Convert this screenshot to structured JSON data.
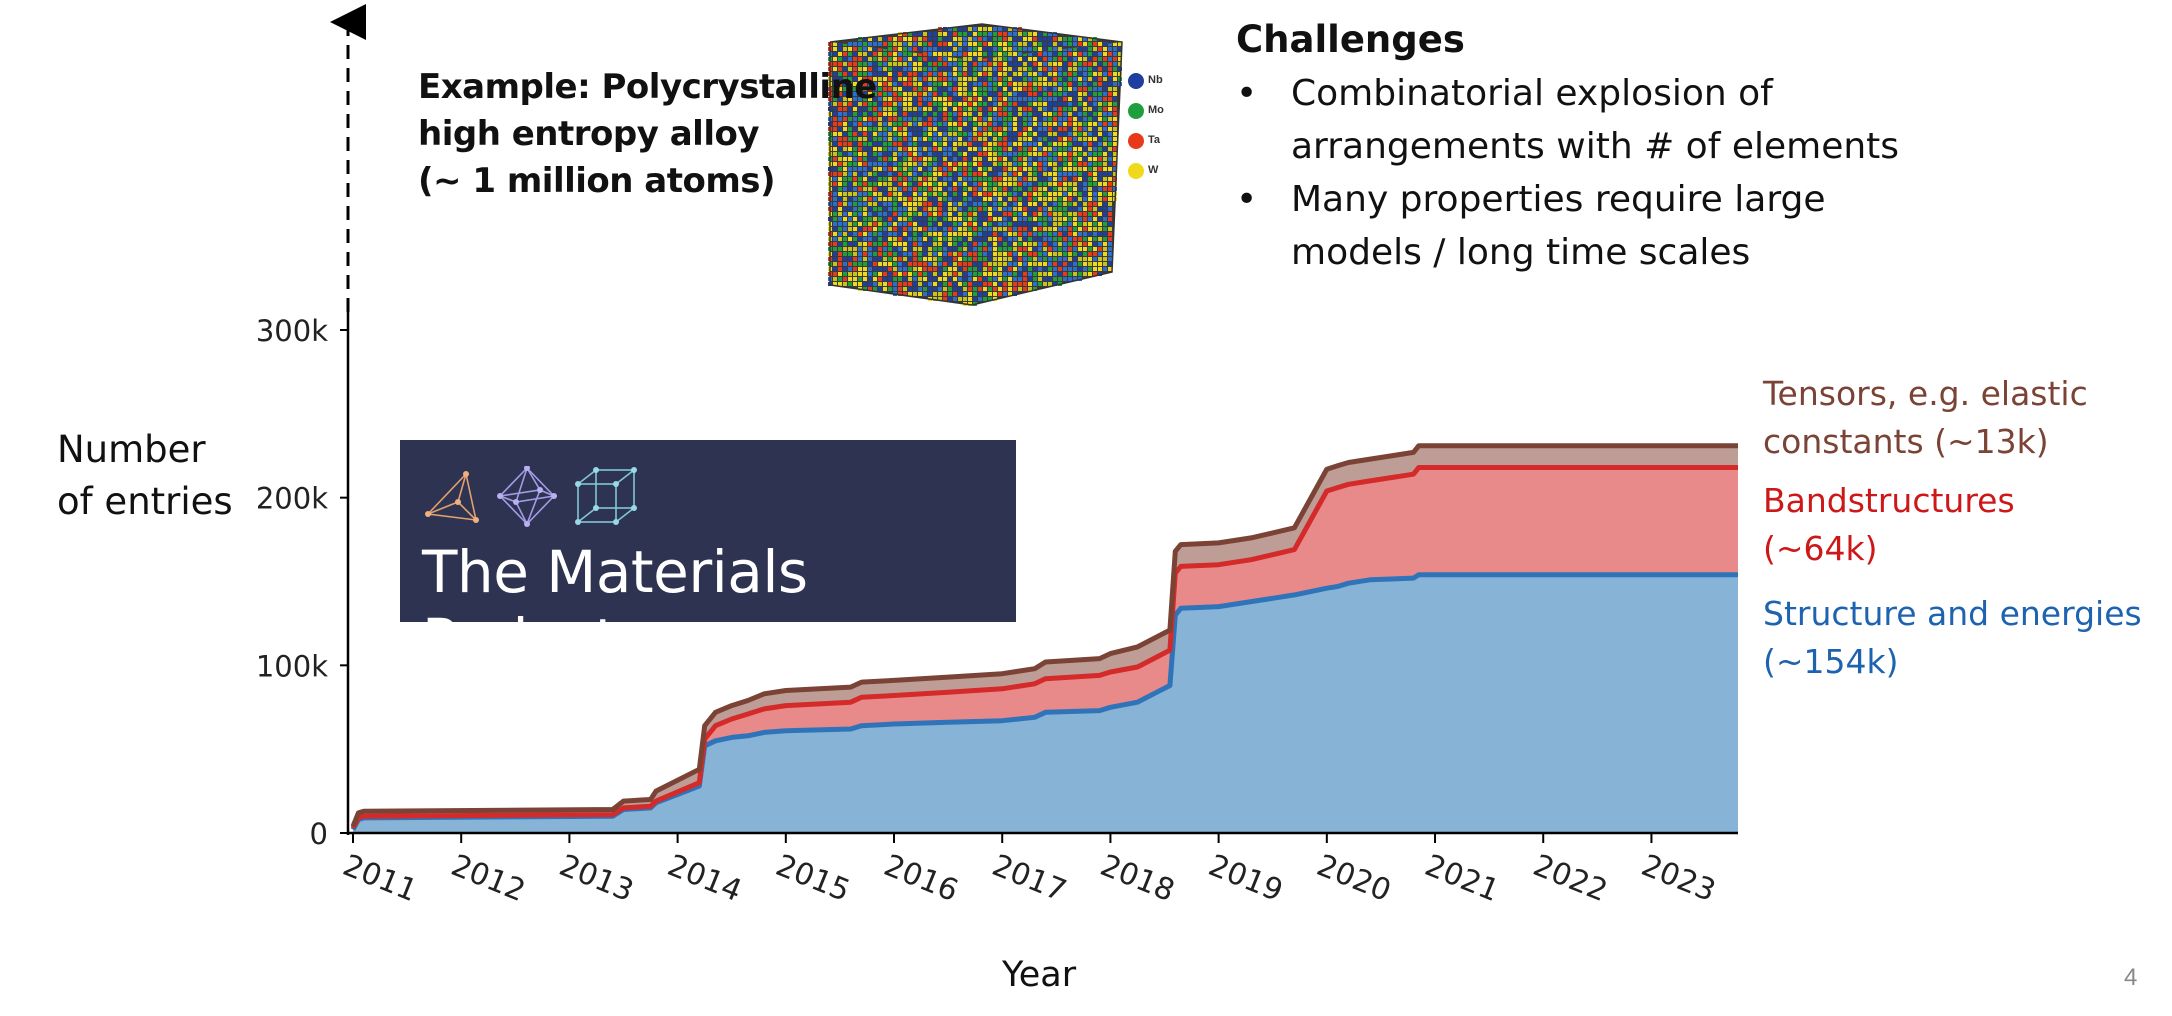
{
  "annotations": {
    "example": [
      "Example: Polycrystalline",
      "high entropy alloy",
      "(~ 1 million atoms)"
    ],
    "challenges_title": "Challenges",
    "challenges": [
      {
        "bullet": "•",
        "lines": [
          "Combinatorial explosion of",
          "arrangements with # of elements"
        ]
      },
      {
        "bullet": "•",
        "lines": [
          "Many properties require large",
          "models / long time scales"
        ]
      }
    ],
    "page_number": "4"
  },
  "logo": {
    "title": "The Materials Project",
    "icons": [
      "tetrahedron-icon",
      "octahedron-icon",
      "cube-lattice-icon"
    ]
  },
  "atom_legend": [
    "Nb",
    "Mo",
    "Ta",
    "W"
  ],
  "colors": {
    "structures_fill": "#86b3d6",
    "structures_line": "#2f74b9",
    "bands_fill": "#e98a8a",
    "bands_line": "#d42a2a",
    "tensors_fill": "#bf9d97",
    "tensors_line": "#7a4336",
    "banner": "#2d3350"
  },
  "chart_data": {
    "type": "area",
    "stacked": true,
    "title": "",
    "xlabel": "Year",
    "ylabel": [
      "Number",
      "of entries"
    ],
    "ylim": [
      0,
      300000
    ],
    "xlim": [
      2011.0,
      2023.8
    ],
    "yticks": [
      0,
      100000,
      200000,
      300000
    ],
    "ytick_labels": [
      "0",
      "100k",
      "200k",
      "300k"
    ],
    "xticks": [
      2011,
      2012,
      2013,
      2014,
      2015,
      2016,
      2017,
      2018,
      2019,
      2020,
      2021,
      2022,
      2023
    ],
    "xtick_labels": [
      "2011",
      "2012",
      "2013",
      "2014",
      "2015",
      "2016",
      "2017",
      "2018",
      "2019",
      "2020",
      "2021",
      "2022",
      "2023"
    ],
    "grid": false,
    "legend_position": "right",
    "series": [
      {
        "name": "Structure and energies",
        "label_lines": [
          "Structure and energies",
          "(~154k)"
        ],
        "x": [
          2011.0,
          2011.05,
          2011.1,
          2013.4,
          2013.5,
          2013.75,
          2013.8,
          2014.2,
          2014.25,
          2014.35,
          2014.5,
          2014.65,
          2014.8,
          2015.0,
          2015.6,
          2015.7,
          2016.0,
          2016.5,
          2017.0,
          2017.3,
          2017.4,
          2017.9,
          2018.0,
          2018.25,
          2018.4,
          2018.55,
          2018.6,
          2018.65,
          2019.0,
          2019.3,
          2019.5,
          2019.7,
          2020.0,
          2020.1,
          2020.2,
          2020.4,
          2020.8,
          2020.85,
          2021.5,
          2022.5,
          2023.8
        ],
        "values": [
          2000,
          8000,
          9000,
          10000,
          14000,
          15000,
          18000,
          28000,
          52000,
          55000,
          57000,
          58000,
          60000,
          61000,
          62000,
          64000,
          65000,
          66000,
          67000,
          69000,
          72000,
          73000,
          75000,
          78000,
          83000,
          88000,
          130000,
          134000,
          135000,
          138000,
          140000,
          142000,
          146000,
          147000,
          149000,
          151000,
          152000,
          154000,
          154000,
          154000,
          154000
        ]
      },
      {
        "name": "Bandstructures",
        "label_lines": [
          "Bandstructures",
          "(~64k)"
        ],
        "x": [
          2011.0,
          2011.05,
          2011.1,
          2013.4,
          2013.5,
          2013.75,
          2013.8,
          2014.2,
          2014.25,
          2014.35,
          2014.5,
          2014.65,
          2014.8,
          2015.0,
          2015.6,
          2015.7,
          2016.0,
          2016.5,
          2017.0,
          2017.3,
          2017.4,
          2017.9,
          2018.0,
          2018.25,
          2018.4,
          2018.55,
          2018.6,
          2018.65,
          2019.0,
          2019.3,
          2019.5,
          2019.7,
          2020.0,
          2020.1,
          2020.2,
          2020.4,
          2020.8,
          2020.85,
          2021.5,
          2022.5,
          2023.8
        ],
        "values": [
          1000,
          1000,
          1000,
          1000,
          1000,
          1000,
          1000,
          2000,
          4000,
          9000,
          11000,
          13000,
          14000,
          15000,
          16000,
          17000,
          17000,
          18000,
          19000,
          20000,
          20000,
          21000,
          21000,
          21000,
          21000,
          21000,
          25000,
          25000,
          25000,
          25000,
          26000,
          27000,
          58000,
          59000,
          59000,
          59000,
          62000,
          64000,
          64000,
          64000,
          64000
        ]
      },
      {
        "name": "Tensors, e.g. elastic constants",
        "label_lines": [
          "Tensors, e.g. elastic",
          "constants (~13k)"
        ],
        "x": [
          2011.0,
          2011.05,
          2011.1,
          2013.4,
          2013.5,
          2013.75,
          2013.8,
          2014.2,
          2014.25,
          2014.35,
          2014.5,
          2014.65,
          2014.8,
          2015.0,
          2015.6,
          2015.7,
          2016.0,
          2016.5,
          2017.0,
          2017.3,
          2017.4,
          2017.9,
          2018.0,
          2018.25,
          2018.4,
          2018.55,
          2018.6,
          2018.65,
          2019.0,
          2019.3,
          2019.5,
          2019.7,
          2020.0,
          2020.1,
          2020.2,
          2020.4,
          2020.8,
          2020.85,
          2021.5,
          2022.5,
          2023.8
        ],
        "values": [
          1000,
          3000,
          3000,
          3000,
          4000,
          4000,
          6000,
          8000,
          8000,
          8000,
          8000,
          8000,
          9000,
          9000,
          9000,
          9000,
          9000,
          9000,
          9000,
          9000,
          10000,
          10000,
          11000,
          12000,
          12000,
          12000,
          13000,
          13000,
          13000,
          13000,
          13000,
          13000,
          13000,
          13000,
          13000,
          13000,
          13000,
          13000,
          13000,
          13000,
          13000
        ]
      }
    ]
  }
}
